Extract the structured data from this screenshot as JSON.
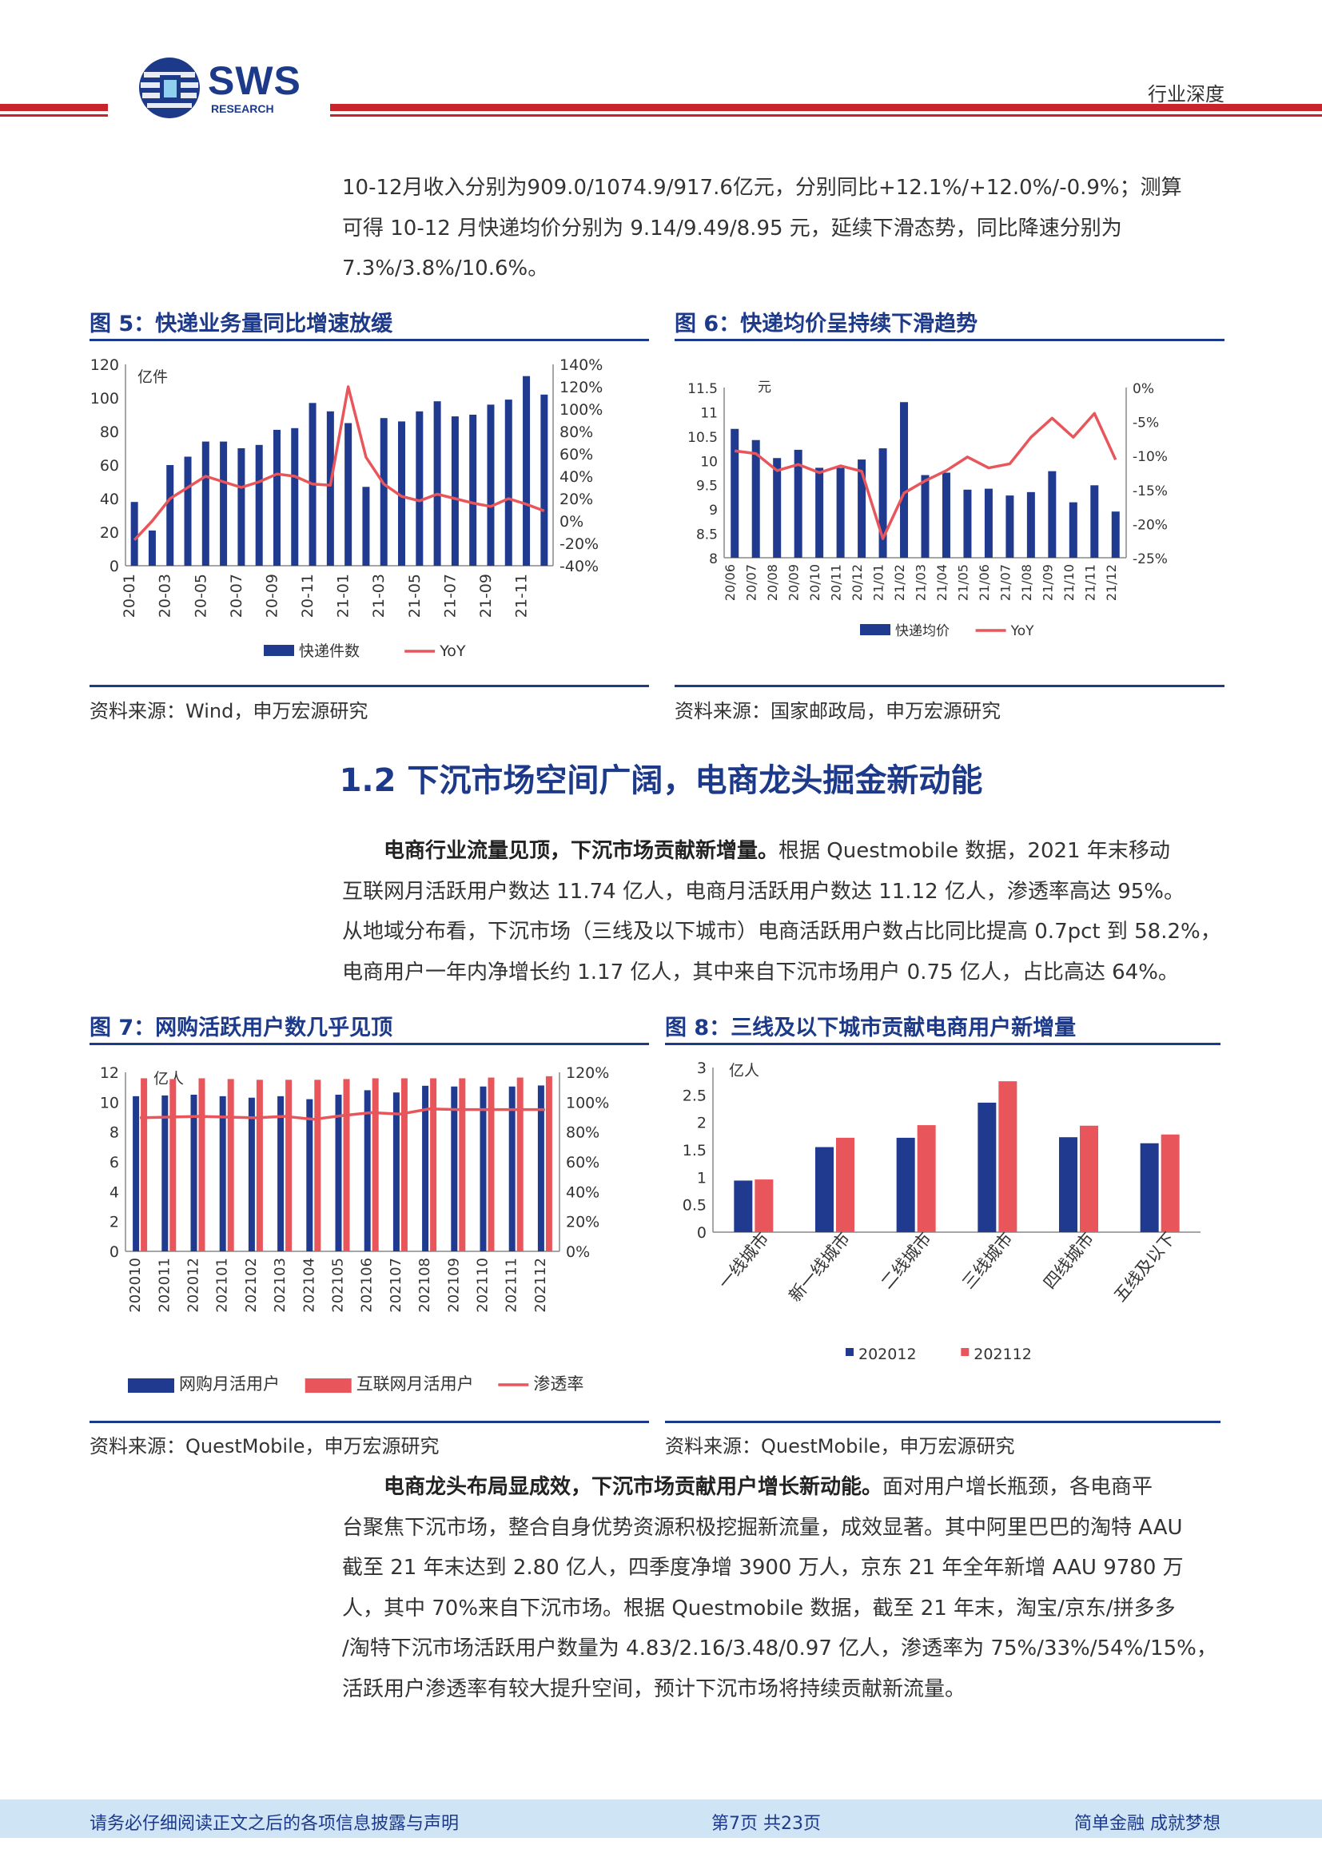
{
  "header": {
    "logo_text": "SWS",
    "logo_sub": "RESEARCH",
    "category": "行业深度"
  },
  "intro": {
    "line1": "10-12月收入分别为909.0/1074.9/917.6亿元，分别同比+12.1%/+12.0%/-0.9%；测算",
    "line2": "可得 10-12 月快递均价分别为 9.14/9.49/8.95 元，延续下滑态势，同比降速分别为",
    "line3": "7.3%/3.8%/10.6%。"
  },
  "fig5": {
    "title": "图 5：快递业务量同比增速放缓",
    "source": "资料来源：Wind，申万宏源研究",
    "chart_data": {
      "type": "bar",
      "unit_label": "亿件",
      "categories": [
        "20-01",
        "20-02",
        "20-03",
        "20-04",
        "20-05",
        "20-06",
        "20-07",
        "20-08",
        "20-09",
        "20-10",
        "20-11",
        "20-12",
        "21-01",
        "21-02",
        "21-03",
        "21-04",
        "21-05",
        "21-06",
        "21-07",
        "21-08",
        "21-09",
        "21-10",
        "21-11",
        "21-12"
      ],
      "xticks": [
        "20-01",
        "20-03",
        "20-05",
        "20-07",
        "20-09",
        "20-11",
        "21-01",
        "21-03",
        "21-05",
        "21-07",
        "21-09",
        "21-11"
      ],
      "series": [
        {
          "name": "快递件数",
          "type": "bar",
          "values": [
            38,
            21,
            60,
            65,
            74,
            74,
            70,
            72,
            81,
            82,
            97,
            92,
            85,
            47,
            88,
            86,
            92,
            98,
            89,
            90,
            96,
            99,
            113,
            102
          ]
        },
        {
          "name": "YoY",
          "type": "line",
          "axis": "right",
          "values": [
            -17,
            0,
            20,
            30,
            40,
            35,
            30,
            35,
            42,
            40,
            33,
            32,
            120,
            57,
            33,
            22,
            18,
            24,
            20,
            16,
            13,
            20,
            15,
            9
          ]
        }
      ],
      "ylim": [
        0,
        120
      ],
      "yticks": [
        0,
        20,
        40,
        60,
        80,
        100,
        120
      ],
      "y2lim": [
        -40,
        140
      ],
      "y2ticks": [
        "-40%",
        "-20%",
        "0%",
        "20%",
        "40%",
        "60%",
        "80%",
        "100%",
        "120%",
        "140%"
      ],
      "legend": "bottom",
      "colors": {
        "bar": "#1f3a8f",
        "line": "#e8555a"
      }
    }
  },
  "fig6": {
    "title": "图 6：快递均价呈持续下滑趋势",
    "source": "资料来源：国家邮政局，申万宏源研究",
    "chart_data": {
      "type": "bar",
      "unit_label": "元",
      "categories": [
        "20/06",
        "20/07",
        "20/08",
        "20/09",
        "20/10",
        "20/11",
        "20/12",
        "21/01",
        "21/02",
        "21/03",
        "21/04",
        "21/05",
        "21/06",
        "21/07",
        "21/08",
        "21/09",
        "21/10",
        "21/11",
        "21/12"
      ],
      "series": [
        {
          "name": "快递均价",
          "type": "bar",
          "values": [
            10.65,
            10.42,
            10.05,
            10.22,
            9.85,
            9.85,
            10.02,
            10.25,
            11.2,
            9.7,
            9.75,
            9.4,
            9.42,
            9.28,
            9.35,
            9.78,
            9.14,
            9.49,
            8.95
          ]
        },
        {
          "name": "YoY",
          "type": "line",
          "axis": "right",
          "values": [
            -9.3,
            -9.7,
            -12.2,
            -11.3,
            -12.5,
            -11.5,
            -12.3,
            -22.2,
            -15.5,
            -13.7,
            -12.2,
            -10.2,
            -11.8,
            -11.2,
            -7.3,
            -4.5,
            -7.3,
            -3.8,
            -10.6
          ]
        }
      ],
      "ylim": [
        8,
        11.5
      ],
      "yticks": [
        "8",
        "8.5",
        "9",
        "9.5",
        "10",
        "10.5",
        "11",
        "11.5"
      ],
      "y2lim": [
        -25,
        0
      ],
      "y2ticks": [
        "-25%",
        "-20%",
        "-15%",
        "-10%",
        "-5%",
        "0%"
      ],
      "legend": "bottom",
      "colors": {
        "bar": "#1f3a8f",
        "line": "#e8555a"
      }
    }
  },
  "section": {
    "title": "1.2 下沉市场空间广阔，电商龙头掘金新动能"
  },
  "para2": {
    "bold": "电商行业流量见顶，下沉市场贡献新增量。",
    "l1": "根据 Questmobile 数据，2021 年末移动",
    "l2": "互联网月活跃用户数达 11.74 亿人，电商月活跃用户数达 11.12 亿人，渗透率高达 95%。",
    "l3": "从地域分布看，下沉市场（三线及以下城市）电商活跃用户数占比同比提高 0.7pct 到 58.2%，",
    "l4": "电商用户一年内净增长约 1.17 亿人，其中来自下沉市场用户 0.75 亿人，占比高达 64%。"
  },
  "fig7": {
    "title": "图 7：网购活跃用户数几乎见顶",
    "source": "资料来源：QuestMobile，申万宏源研究",
    "chart_data": {
      "type": "bar",
      "unit_label": "亿人",
      "categories": [
        "202010",
        "202011",
        "202012",
        "202101",
        "202102",
        "202103",
        "202104",
        "202105",
        "202106",
        "202107",
        "202108",
        "202109",
        "202110",
        "202111",
        "202112"
      ],
      "series": [
        {
          "name": "网购月活用户",
          "type": "bar",
          "values": [
            10.4,
            10.45,
            10.5,
            10.4,
            10.3,
            10.4,
            10.2,
            10.5,
            10.8,
            10.65,
            11.1,
            11.05,
            11.05,
            11.05,
            11.12
          ]
        },
        {
          "name": "互联网月活用户",
          "type": "bar",
          "values": [
            11.6,
            11.55,
            11.6,
            11.55,
            11.5,
            11.5,
            11.5,
            11.55,
            11.6,
            11.6,
            11.6,
            11.6,
            11.65,
            11.65,
            11.74
          ]
        },
        {
          "name": "渗透率",
          "type": "line",
          "axis": "right",
          "values": [
            89.5,
            90,
            90.5,
            90,
            89.5,
            90.5,
            88.5,
            91,
            93,
            92,
            95.5,
            95,
            95,
            95,
            95
          ]
        }
      ],
      "ylim": [
        0,
        12
      ],
      "yticks": [
        0,
        2,
        4,
        6,
        8,
        10,
        12
      ],
      "y2lim": [
        0,
        120
      ],
      "y2ticks": [
        "0%",
        "20%",
        "40%",
        "60%",
        "80%",
        "100%",
        "120%"
      ],
      "legend": "bottom",
      "colors": {
        "bar1": "#1f3a8f",
        "bar2": "#e8555a",
        "line": "#e8555a"
      }
    }
  },
  "fig8": {
    "title": "图 8：三线及以下城市贡献电商用户新增量",
    "source": "资料来源：QuestMobile，申万宏源研究",
    "chart_data": {
      "type": "bar",
      "unit_label": "亿人",
      "categories": [
        "一线城市",
        "新一线城市",
        "二线城市",
        "三线城市",
        "四线城市",
        "五线及以下"
      ],
      "series": [
        {
          "name": "202012",
          "values": [
            0.94,
            1.55,
            1.72,
            2.36,
            1.73,
            1.62
          ]
        },
        {
          "name": "202112",
          "values": [
            0.96,
            1.72,
            1.95,
            2.75,
            1.94,
            1.78
          ]
        }
      ],
      "ylim": [
        0,
        3
      ],
      "yticks": [
        "0",
        "0.5",
        "1",
        "1.5",
        "2",
        "2.5",
        "3"
      ],
      "legend": "bottom",
      "colors": {
        "s1": "#1f3a8f",
        "s2": "#e8555a"
      }
    }
  },
  "para3": {
    "bold": "电商龙头布局显成效，下沉市场贡献用户增长新动能。",
    "l1": "面对用户增长瓶颈，各电商平",
    "l2": "台聚焦下沉市场，整合自身优势资源积极挖掘新流量，成效显著。其中阿里巴巴的淘特 AAU",
    "l3": "截至 21 年末达到 2.80 亿人，四季度净增 3900 万人，京东 21 年全年新增 AAU 9780 万",
    "l4": "人，其中 70%来自下沉市场。根据 Questmobile 数据，截至 21 年末，淘宝/京东/拼多多",
    "l5": "/淘特下沉市场活跃用户数量为 4.83/2.16/3.48/0.97 亿人，渗透率为 75%/33%/54%/15%，",
    "l6": "活跃用户渗透率有较大提升空间，预计下沉市场将持续贡献新流量。"
  },
  "footer": {
    "left": "请务必仔细阅读正文之后的各项信息披露与声明",
    "center": "第7页 共23页",
    "right": "简单金融 成就梦想"
  }
}
